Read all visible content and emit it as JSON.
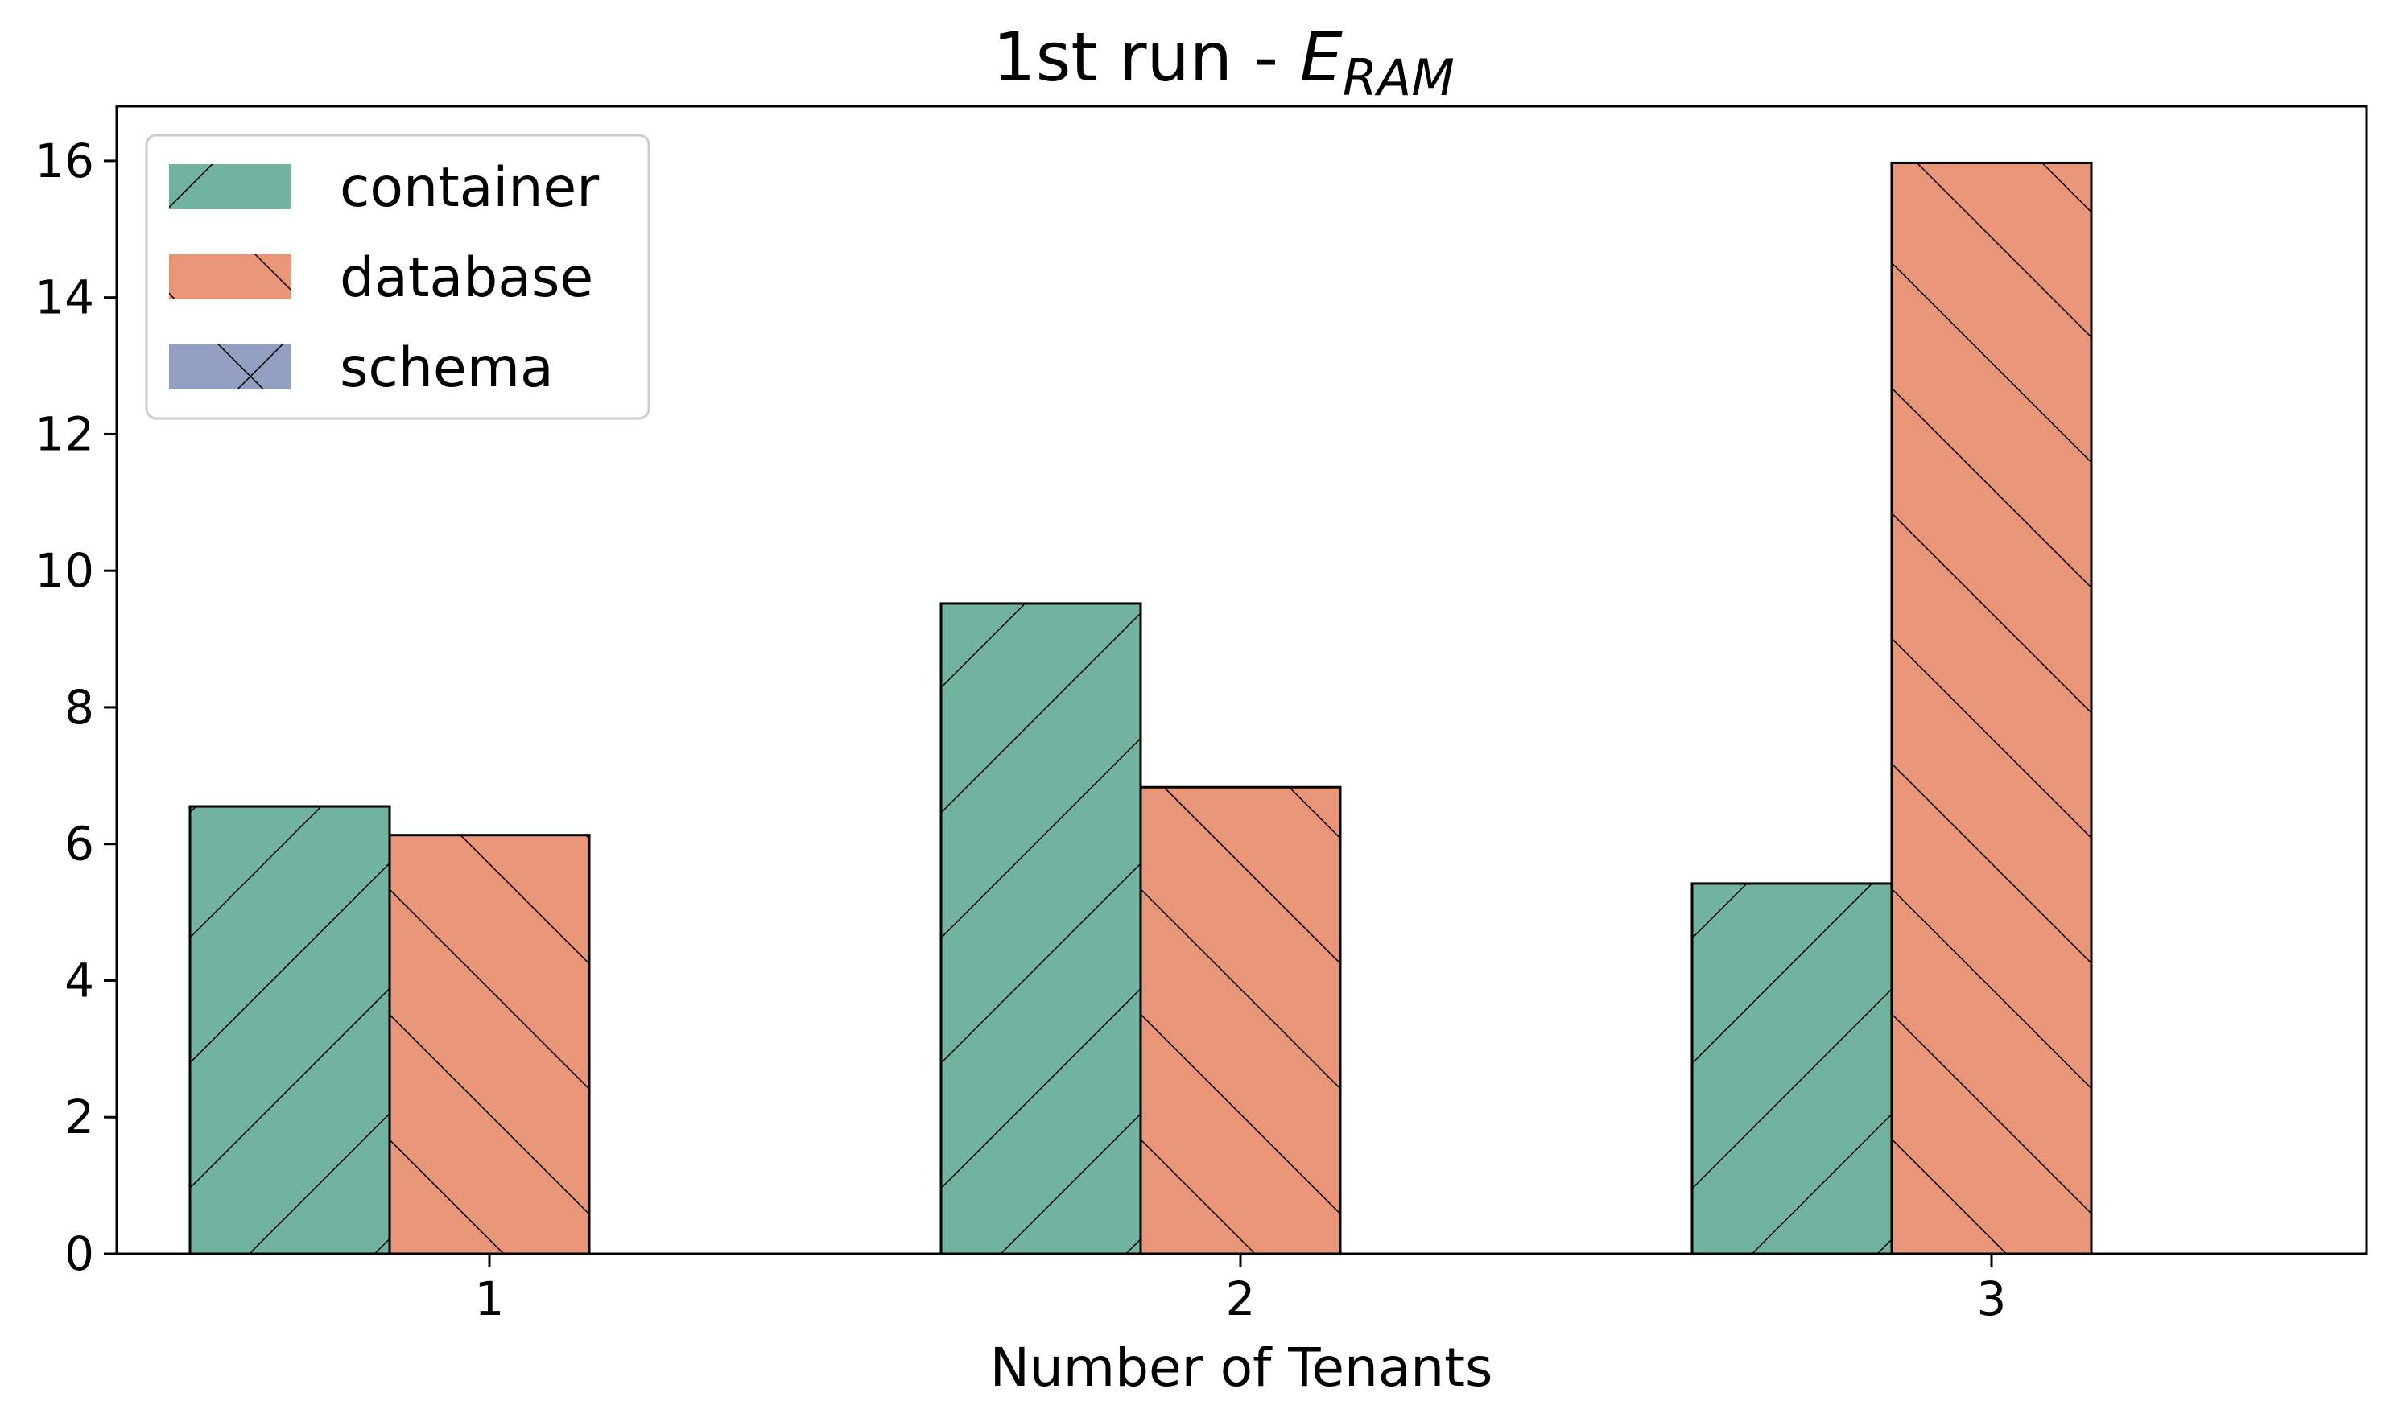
{
  "chart_data": {
    "type": "bar",
    "title_prefix": "1st run - ",
    "title_symbol": "E",
    "title_subscript": "RAM",
    "xlabel": "Number of Tenants",
    "ylabel": "",
    "categories": [
      "1",
      "2",
      "3"
    ],
    "ylim": [
      0,
      16.8
    ],
    "yticks": [
      0,
      2,
      4,
      6,
      8,
      10,
      12,
      14,
      16
    ],
    "grid": false,
    "legend_position": "upper-left",
    "series": [
      {
        "name": "container",
        "values": [
          6.55,
          9.52,
          5.42
        ],
        "color": "#72b39f",
        "hatch": "forward-diagonal"
      },
      {
        "name": "database",
        "values": [
          6.13,
          6.83,
          15.97
        ],
        "color": "#e89677",
        "hatch": "back-diagonal"
      },
      {
        "name": "schema",
        "values": [
          null,
          null,
          null
        ],
        "color": "#929fc0",
        "hatch": "cross"
      }
    ]
  }
}
